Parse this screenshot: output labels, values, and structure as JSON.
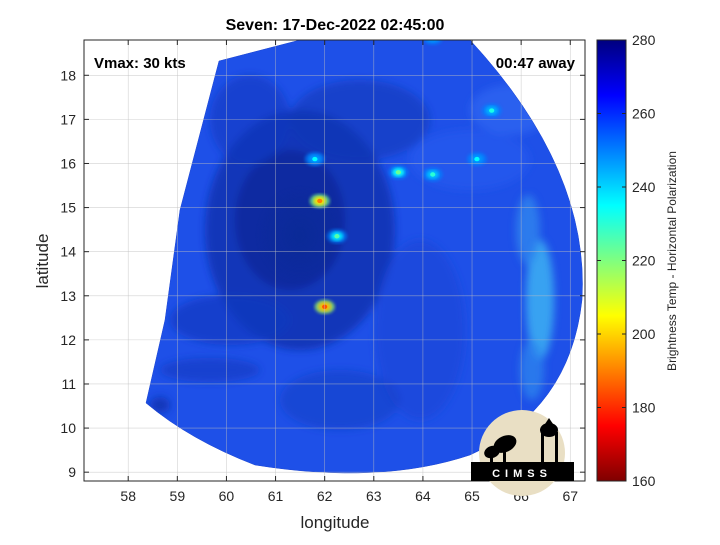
{
  "title": "Seven: 17-Dec-2022 02:45:00",
  "vmax_label": "Vmax: 30 kts",
  "time_away_label": "00:47 away",
  "logo_text": "CIMSS",
  "axes": {
    "xlabel": "longitude",
    "ylabel": "latitude",
    "x_range": [
      57.1,
      67.3
    ],
    "y_range": [
      8.8,
      18.8
    ],
    "x_ticks": [
      "58",
      "59",
      "60",
      "61",
      "62",
      "63",
      "64",
      "65",
      "66",
      "67"
    ],
    "y_ticks": [
      "9",
      "10",
      "11",
      "12",
      "13",
      "14",
      "15",
      "16",
      "17",
      "18"
    ],
    "grid": true
  },
  "colorbar": {
    "label": "Brightness Temp - Horizontal Polarization",
    "range": [
      160,
      280
    ],
    "ticks": [
      "280",
      "260",
      "240",
      "220",
      "200",
      "180",
      "160"
    ],
    "colormap": "jet"
  },
  "colors": {
    "background_blue": "#1f4fe6",
    "cloud_dark": "#0a2fa8",
    "warm_band": "#2fa6f0",
    "logo_bg": "#e9dfc4"
  },
  "convective_cells": [
    {
      "lon": 62.0,
      "lat": 12.75,
      "tb": 185
    },
    {
      "lon": 61.9,
      "lat": 15.15,
      "tb": 190
    },
    {
      "lon": 62.25,
      "lat": 14.35,
      "tb": 225
    },
    {
      "lon": 61.8,
      "lat": 16.1,
      "tb": 235
    },
    {
      "lon": 63.5,
      "lat": 15.8,
      "tb": 222
    },
    {
      "lon": 64.2,
      "lat": 15.75,
      "tb": 230
    },
    {
      "lon": 65.4,
      "lat": 17.2,
      "tb": 232
    },
    {
      "lon": 64.2,
      "lat": 18.85,
      "tb": 235
    },
    {
      "lon": 65.1,
      "lat": 16.1,
      "tb": 235
    }
  ]
}
